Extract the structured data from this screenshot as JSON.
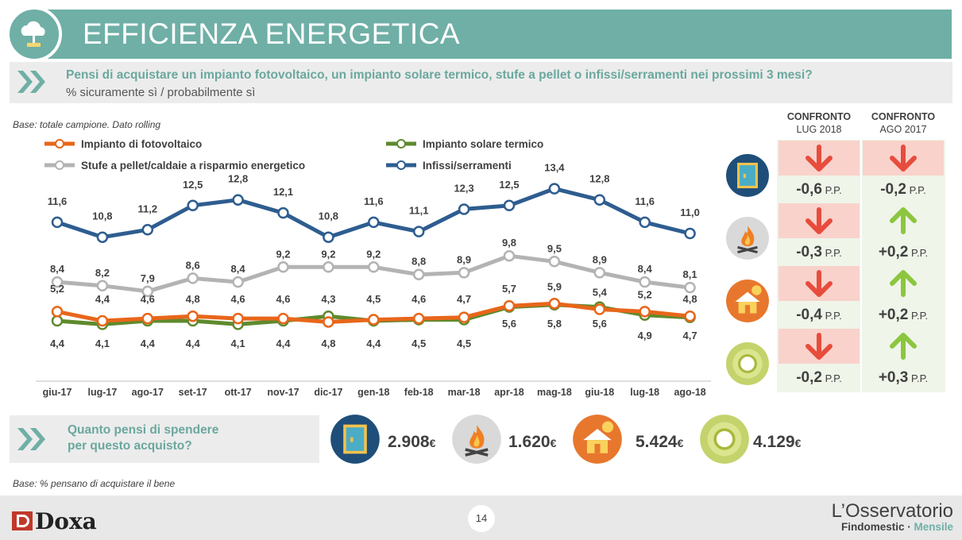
{
  "header": {
    "title": "EFFICIENZA ENERGETICA",
    "icon": "cloud-sun-icon"
  },
  "question": {
    "text": "Pensi di acquistare un impianto fotovoltaico, un impianto solare termico, stufe a pellet o infissi/serramenti nei prossimi 3 mesi?",
    "sub": "% sicuramente sì / probabilmente sì"
  },
  "base_note": "Base: totale campione. Dato rolling",
  "base_note_2": "Base: % pensano di acquistare il bene",
  "colors": {
    "accent": "#6fafa6",
    "fotovoltaico": "#e8661a",
    "solare": "#5f8a2d",
    "stufe": "#b3b3b3",
    "infissi": "#2e5d90",
    "down": "#e74c3c",
    "up": "#8cc63f"
  },
  "chart_data": {
    "type": "line",
    "categories": [
      "giu-17",
      "lug-17",
      "ago-17",
      "set-17",
      "ott-17",
      "nov-17",
      "dic-17",
      "gen-18",
      "feb-18",
      "mar-18",
      "apr-18",
      "mag-18",
      "giu-18",
      "lug-18",
      "ago-18"
    ],
    "series": [
      {
        "name": "Infissi/serramenti",
        "color": "#2e5d90",
        "values": [
          11.6,
          10.8,
          11.2,
          12.5,
          12.8,
          12.1,
          10.8,
          11.6,
          11.1,
          12.3,
          12.5,
          13.4,
          12.8,
          11.6,
          11.0
        ],
        "labels": [
          "11,6",
          "10,8",
          "11,2",
          "12,5",
          "12,8",
          "12,1",
          "10,8",
          "11,6",
          "11,1",
          "12,3",
          "12,5",
          "13,4",
          "12,8",
          "11,6",
          "11,0"
        ]
      },
      {
        "name": "Stufe a pellet/caldaie a risparmio energetico",
        "color": "#b3b3b3",
        "values": [
          8.4,
          8.2,
          7.9,
          8.6,
          8.4,
          9.2,
          9.2,
          9.2,
          8.8,
          8.9,
          9.8,
          9.5,
          8.9,
          8.4,
          8.1
        ],
        "labels": [
          "8,4",
          "8,2",
          "7,9",
          "8,6",
          "8,4",
          "9,2",
          "9,2",
          "9,2",
          "8,8",
          "8,9",
          "9,8",
          "9,5",
          "8,9",
          "8,4",
          "8,1"
        ]
      },
      {
        "name": "Impianto di fotovoltaico",
        "color": "#e8661a",
        "values": [
          5.2,
          4.4,
          4.6,
          4.8,
          4.6,
          4.6,
          4.3,
          4.5,
          4.6,
          4.7,
          5.7,
          5.9,
          5.4,
          5.2,
          4.8
        ],
        "labels": [
          "5,2",
          "4,4",
          "4,6",
          "4,8",
          "4,6",
          "4,6",
          "4,3",
          "4,5",
          "4,6",
          "4,7",
          "5,7",
          "5,9",
          "5,4",
          "5,2",
          "4,8"
        ]
      },
      {
        "name": "Impianto solare termico",
        "color": "#5f8a2d",
        "values": [
          4.4,
          4.1,
          4.4,
          4.4,
          4.1,
          4.4,
          4.8,
          4.4,
          4.5,
          4.5,
          5.6,
          5.8,
          5.6,
          4.9,
          4.7
        ],
        "labels": [
          "4,4",
          "4,1",
          "4,4",
          "4,4",
          "4,1",
          "4,4",
          "4,8",
          "4,4",
          "4,5",
          "4,5",
          "5,6",
          "5,8",
          "5,6",
          "4,9",
          "4,7"
        ]
      }
    ],
    "legend": [
      {
        "name": "Impianto di fotovoltaico",
        "color": "#e8661a"
      },
      {
        "name": "Impianto solare termico",
        "color": "#5f8a2d"
      },
      {
        "name": "Stufe a pellet/caldaie a risparmio energetico",
        "color": "#b3b3b3"
      },
      {
        "name": "Infissi/serramenti",
        "color": "#2e5d90"
      }
    ]
  },
  "comparison": {
    "head1_line1": "CONFRONTO",
    "head1_line2": "LUG 2018",
    "head2_line1": "CONFRONTO",
    "head2_line2": "AGO 2017",
    "pp": "P.P.",
    "rows": [
      {
        "icon": "window-icon",
        "v1": "-0,6",
        "d1": "down",
        "v2": "-0,2",
        "d2": "down"
      },
      {
        "icon": "fire-icon",
        "v1": "-0,3",
        "d1": "down",
        "v2": "+0,2",
        "d2": "up"
      },
      {
        "icon": "house-sun-icon",
        "v1": "-0,4",
        "d1": "down",
        "v2": "+0,2",
        "d2": "up"
      },
      {
        "icon": "sun-panel-icon",
        "v1": "-0,2",
        "d1": "down",
        "v2": "+0,3",
        "d2": "up"
      }
    ]
  },
  "spend": {
    "line1": "Quanto pensi di spendere",
    "line2": "per questo acquisto?",
    "items": [
      {
        "icon": "window-icon",
        "value": "2.908",
        "unit": "€"
      },
      {
        "icon": "fire-icon",
        "value": "1.620",
        "unit": "€"
      },
      {
        "icon": "house-sun-icon",
        "value": "5.424",
        "unit": "€"
      },
      {
        "icon": "sun-panel-icon",
        "value": "4.129",
        "unit": "€"
      }
    ]
  },
  "footer": {
    "page": "14",
    "logo": "Doxa",
    "brand": "L’Osservatorio",
    "sub1": "Findomestic · ",
    "sub2": "Mensile"
  }
}
